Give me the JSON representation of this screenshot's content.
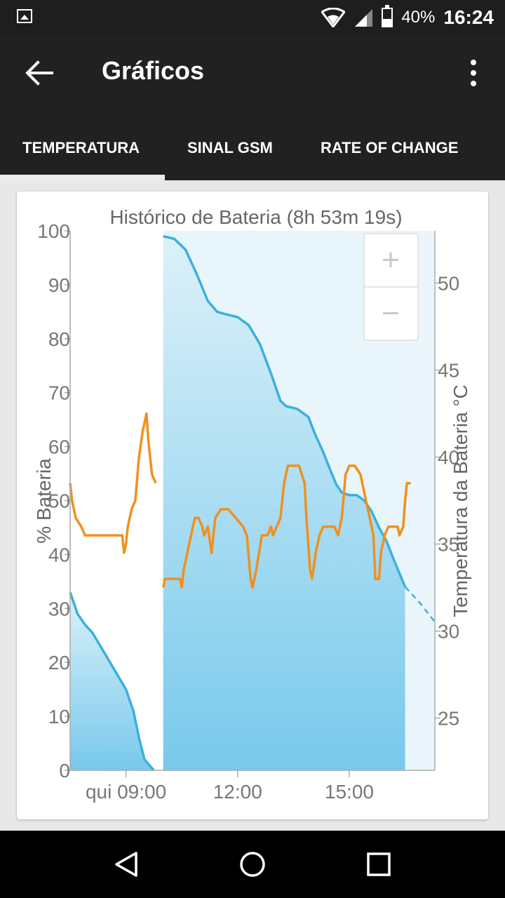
{
  "status_bar": {
    "battery": "40%",
    "time": "16:24"
  },
  "app_bar": {
    "title": "Gráficos"
  },
  "tabs": [
    {
      "label": "TEMPERATURA",
      "active": true
    },
    {
      "label": "SINAL GSM",
      "active": false
    },
    {
      "label": "RATE OF CHANGE",
      "active": false
    }
  ],
  "zoom": {
    "in_label": "+",
    "out_label": "−"
  },
  "chart_data": {
    "type": "line",
    "title": "Histórico de Bateria (8h 53m 19s)",
    "ylabel": "% Bateria",
    "y2label": "Temperatura da Bateria °C",
    "ylim": [
      0,
      100
    ],
    "y2lim": [
      22,
      53
    ],
    "y_ticks": [
      "0",
      "10",
      "20",
      "30",
      "40",
      "50",
      "60",
      "70",
      "80",
      "90",
      "100"
    ],
    "y2_ticks": [
      "25",
      "30",
      "35",
      "40",
      "45",
      "50"
    ],
    "x_ticks": [
      "qui 09:00",
      "12:00",
      "15:00"
    ],
    "x_tick_hours": [
      9,
      12,
      15
    ],
    "xlim": [
      7.5,
      17.3
    ],
    "colors": {
      "battery": "#3cb0dc",
      "temperature": "#f0901e"
    },
    "battery_segments": [
      [
        [
          7.5,
          33
        ],
        [
          7.7,
          29
        ],
        [
          7.9,
          27
        ],
        [
          8.1,
          25.5
        ],
        [
          8.4,
          22
        ],
        [
          8.7,
          18.5
        ],
        [
          9.0,
          15
        ],
        [
          9.2,
          11
        ],
        [
          9.35,
          6
        ],
        [
          9.5,
          2
        ],
        [
          9.75,
          0
        ]
      ],
      [
        [
          10.0,
          99
        ],
        [
          10.3,
          98.5
        ],
        [
          10.6,
          96.5
        ],
        [
          10.9,
          92
        ],
        [
          11.2,
          87
        ],
        [
          11.45,
          85
        ],
        [
          11.7,
          84.5
        ],
        [
          12.0,
          84
        ],
        [
          12.3,
          82.5
        ],
        [
          12.6,
          79
        ],
        [
          12.9,
          73.5
        ],
        [
          13.15,
          68.5
        ],
        [
          13.3,
          67.5
        ],
        [
          13.6,
          67
        ],
        [
          13.9,
          65.5
        ],
        [
          14.1,
          62
        ],
        [
          14.3,
          59
        ],
        [
          14.5,
          55.5
        ],
        [
          14.65,
          53
        ],
        [
          14.8,
          51.5
        ],
        [
          15.0,
          51
        ],
        [
          15.2,
          51
        ],
        [
          15.4,
          50
        ],
        [
          15.6,
          48
        ],
        [
          15.8,
          45
        ],
        [
          16.0,
          42.5
        ],
        [
          16.2,
          39
        ],
        [
          16.35,
          36.5
        ],
        [
          16.5,
          34
        ]
      ]
    ],
    "battery_projection": [
      [
        16.5,
        34
      ],
      [
        16.9,
        31
      ],
      [
        17.3,
        27.5
      ]
    ],
    "temperature_segments": [
      [
        [
          7.5,
          38.5
        ],
        [
          7.55,
          37.5
        ],
        [
          7.65,
          36.5
        ],
        [
          7.8,
          36
        ],
        [
          7.9,
          35.5
        ],
        [
          8.1,
          35.5
        ],
        [
          8.4,
          35.5
        ],
        [
          8.7,
          35.5
        ],
        [
          8.9,
          35.5
        ],
        [
          8.95,
          34.5
        ],
        [
          9.0,
          35
        ],
        [
          9.05,
          36
        ],
        [
          9.15,
          37
        ],
        [
          9.25,
          37.5
        ],
        [
          9.35,
          40
        ],
        [
          9.45,
          41.5
        ],
        [
          9.55,
          42.5
        ],
        [
          9.6,
          41
        ],
        [
          9.7,
          39
        ],
        [
          9.8,
          38.5
        ]
      ],
      [
        [
          10.0,
          32.5
        ],
        [
          10.05,
          33
        ],
        [
          10.1,
          33
        ],
        [
          10.3,
          33
        ],
        [
          10.45,
          33
        ],
        [
          10.5,
          32.5
        ],
        [
          10.55,
          33.5
        ],
        [
          10.65,
          34.5
        ],
        [
          10.75,
          35.5
        ],
        [
          10.85,
          36.5
        ],
        [
          10.95,
          36.5
        ],
        [
          11.05,
          36
        ],
        [
          11.1,
          35.5
        ],
        [
          11.2,
          36
        ],
        [
          11.3,
          34.5
        ],
        [
          11.4,
          36.5
        ],
        [
          11.55,
          37
        ],
        [
          11.75,
          37
        ],
        [
          11.95,
          36.5
        ],
        [
          12.15,
          36
        ],
        [
          12.25,
          35.5
        ],
        [
          12.35,
          33
        ],
        [
          12.4,
          32.5
        ],
        [
          12.5,
          33.5
        ],
        [
          12.65,
          35.5
        ],
        [
          12.8,
          35.5
        ],
        [
          12.9,
          36
        ],
        [
          12.95,
          35.5
        ],
        [
          13.05,
          36
        ],
        [
          13.15,
          36.5
        ],
        [
          13.25,
          38.5
        ],
        [
          13.35,
          39.5
        ],
        [
          13.5,
          39.5
        ],
        [
          13.65,
          39.5
        ],
        [
          13.8,
          38.5
        ],
        [
          13.85,
          36.5
        ],
        [
          13.95,
          33.5
        ],
        [
          14.0,
          33
        ],
        [
          14.1,
          34.5
        ],
        [
          14.2,
          35.5
        ],
        [
          14.3,
          36
        ],
        [
          14.5,
          36
        ],
        [
          14.6,
          36
        ],
        [
          14.7,
          35.5
        ],
        [
          14.8,
          36.5
        ],
        [
          14.9,
          39
        ],
        [
          15.0,
          39.5
        ],
        [
          15.15,
          39.5
        ],
        [
          15.3,
          39
        ],
        [
          15.45,
          37.5
        ],
        [
          15.55,
          36.5
        ],
        [
          15.65,
          35.5
        ],
        [
          15.7,
          33
        ],
        [
          15.8,
          33
        ],
        [
          15.85,
          34.5
        ],
        [
          15.95,
          35.5
        ],
        [
          16.05,
          36
        ],
        [
          16.2,
          36
        ],
        [
          16.3,
          36
        ],
        [
          16.35,
          35.5
        ],
        [
          16.45,
          36
        ],
        [
          16.5,
          37.5
        ],
        [
          16.55,
          38.5
        ],
        [
          16.65,
          38.5
        ]
      ]
    ]
  }
}
